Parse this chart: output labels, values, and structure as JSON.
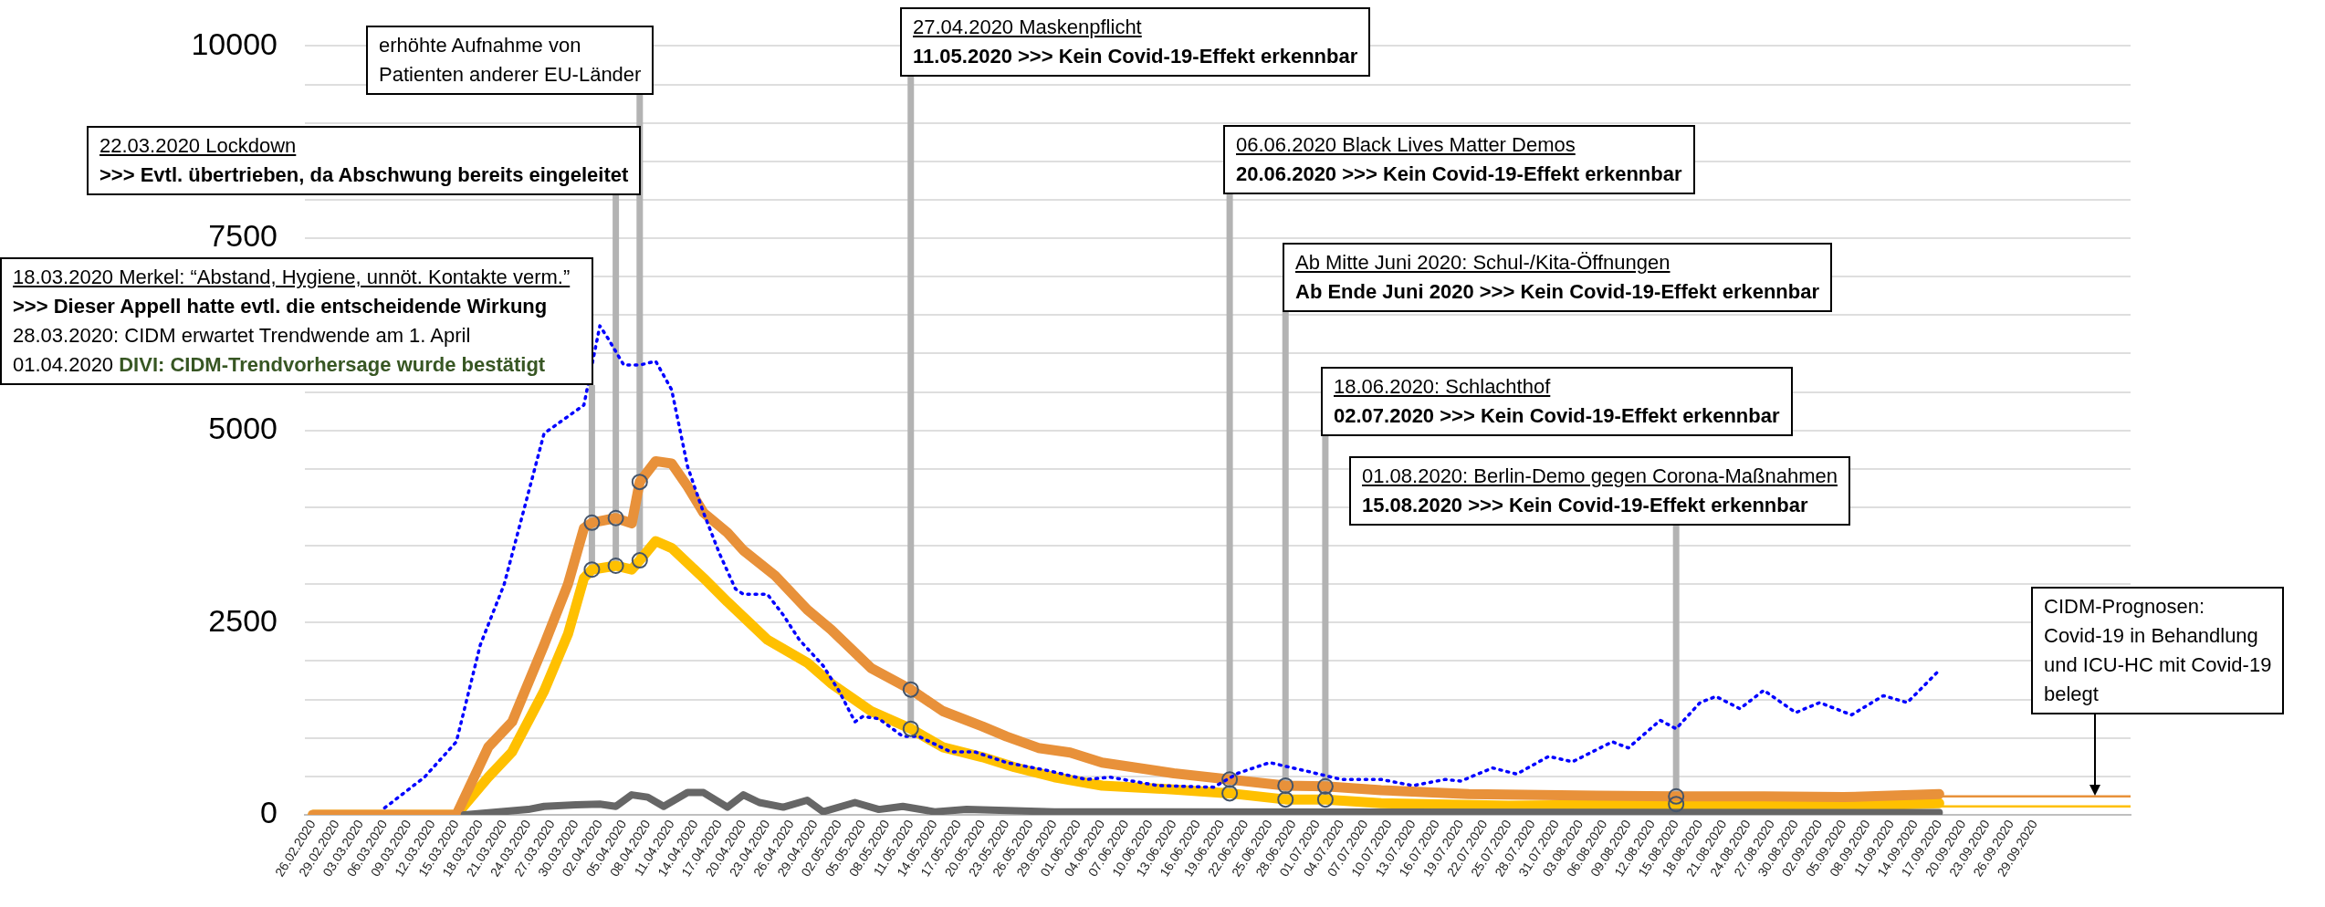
{
  "chart_data": {
    "type": "line",
    "xlim": [
      "2020-02-25",
      "2020-10-11"
    ],
    "xticks": [
      {
        "value": "2020-02-26",
        "label": "26.02.2020"
      },
      {
        "value": "2020-02-29",
        "label": "29.02.2020"
      },
      {
        "value": "2020-03-03",
        "label": "03.03.2020"
      },
      {
        "value": "2020-03-06",
        "label": "06.03.2020"
      },
      {
        "value": "2020-03-09",
        "label": "09.03.2020"
      },
      {
        "value": "2020-03-12",
        "label": "12.03.2020"
      },
      {
        "value": "2020-03-15",
        "label": "15.03.2020"
      },
      {
        "value": "2020-03-18",
        "label": "18.03.2020"
      },
      {
        "value": "2020-03-21",
        "label": "21.03.2020"
      },
      {
        "value": "2020-03-24",
        "label": "24.03.2020"
      },
      {
        "value": "2020-03-27",
        "label": "27.03.2020"
      },
      {
        "value": "2020-03-30",
        "label": "30.03.2020"
      },
      {
        "value": "2020-04-02",
        "label": "02.04.2020"
      },
      {
        "value": "2020-04-05",
        "label": "05.04.2020"
      },
      {
        "value": "2020-04-08",
        "label": "08.04.2020"
      },
      {
        "value": "2020-04-11",
        "label": "11.04.2020"
      },
      {
        "value": "2020-04-14",
        "label": "14.04.2020"
      },
      {
        "value": "2020-04-17",
        "label": "17.04.2020"
      },
      {
        "value": "2020-04-20",
        "label": "20.04.2020"
      },
      {
        "value": "2020-04-23",
        "label": "23.04.2020"
      },
      {
        "value": "2020-04-26",
        "label": "26.04.2020"
      },
      {
        "value": "2020-04-29",
        "label": "29.04.2020"
      },
      {
        "value": "2020-05-02",
        "label": "02.05.2020"
      },
      {
        "value": "2020-05-05",
        "label": "05.05.2020"
      },
      {
        "value": "2020-05-08",
        "label": "08.05.2020"
      },
      {
        "value": "2020-05-11",
        "label": "11.05.2020"
      },
      {
        "value": "2020-05-14",
        "label": "14.05.2020"
      },
      {
        "value": "2020-05-17",
        "label": "17.05.2020"
      },
      {
        "value": "2020-05-20",
        "label": "20.05.2020"
      },
      {
        "value": "2020-05-23",
        "label": "23.05.2020"
      },
      {
        "value": "2020-05-26",
        "label": "26.05.2020"
      },
      {
        "value": "2020-05-29",
        "label": "29.05.2020"
      },
      {
        "value": "2020-06-01",
        "label": "01.06.2020"
      },
      {
        "value": "2020-06-04",
        "label": "04.06.2020"
      },
      {
        "value": "2020-06-07",
        "label": "07.06.2020"
      },
      {
        "value": "2020-06-10",
        "label": "10.06.2020"
      },
      {
        "value": "2020-06-13",
        "label": "13.06.2020"
      },
      {
        "value": "2020-06-16",
        "label": "16.06.2020"
      },
      {
        "value": "2020-06-19",
        "label": "19.06.2020"
      },
      {
        "value": "2020-06-22",
        "label": "22.06.2020"
      },
      {
        "value": "2020-06-25",
        "label": "25.06.2020"
      },
      {
        "value": "2020-06-28",
        "label": "28.06.2020"
      },
      {
        "value": "2020-07-01",
        "label": "01.07.2020"
      },
      {
        "value": "2020-07-04",
        "label": "04.07.2020"
      },
      {
        "value": "2020-07-07",
        "label": "07.07.2020"
      },
      {
        "value": "2020-07-10",
        "label": "10.07.2020"
      },
      {
        "value": "2020-07-13",
        "label": "13.07.2020"
      },
      {
        "value": "2020-07-16",
        "label": "16.07.2020"
      },
      {
        "value": "2020-07-19",
        "label": "19.07.2020"
      },
      {
        "value": "2020-07-22",
        "label": "22.07.2020"
      },
      {
        "value": "2020-07-25",
        "label": "25.07.2020"
      },
      {
        "value": "2020-07-28",
        "label": "28.07.2020"
      },
      {
        "value": "2020-07-31",
        "label": "31.07.2020"
      },
      {
        "value": "2020-08-03",
        "label": "03.08.2020"
      },
      {
        "value": "2020-08-06",
        "label": "06.08.2020"
      },
      {
        "value": "2020-08-09",
        "label": "09.08.2020"
      },
      {
        "value": "2020-08-12",
        "label": "12.08.2020"
      },
      {
        "value": "2020-08-15",
        "label": "15.08.2020"
      },
      {
        "value": "2020-08-18",
        "label": "18.08.2020"
      },
      {
        "value": "2020-08-21",
        "label": "21.08.2020"
      },
      {
        "value": "2020-08-24",
        "label": "24.08.2020"
      },
      {
        "value": "2020-08-27",
        "label": "27.08.2020"
      },
      {
        "value": "2020-08-30",
        "label": "30.08.2020"
      },
      {
        "value": "2020-09-02",
        "label": "02.09.2020"
      },
      {
        "value": "2020-09-05",
        "label": "05.09.2020"
      },
      {
        "value": "2020-09-08",
        "label": "08.09.2020"
      },
      {
        "value": "2020-09-11",
        "label": "11.09.2020"
      },
      {
        "value": "2020-09-14",
        "label": "14.09.2020"
      },
      {
        "value": "2020-09-17",
        "label": "17.09.2020"
      },
      {
        "value": "2020-09-20",
        "label": "20.09.2020"
      },
      {
        "value": "2020-09-23",
        "label": "23.09.2020"
      },
      {
        "value": "2020-09-26",
        "label": "26.09.2020"
      },
      {
        "value": "2020-09-29",
        "label": "29.09.2020"
      }
    ],
    "ylim": [
      0,
      10000
    ],
    "yticks": [
      0,
      {
        "value": 500,
        "label": null
      },
      {
        "value": 1000,
        "label": null
      },
      {
        "value": 1500,
        "label": null
      },
      {
        "value": 2000,
        "label": null
      },
      2500,
      {
        "value": 3000,
        "label": null
      },
      {
        "value": 3500,
        "label": null
      },
      {
        "value": 4000,
        "label": null
      },
      {
        "value": 4500,
        "label": null
      },
      5000,
      {
        "value": 5500,
        "label": null
      },
      {
        "value": 6000,
        "label": null
      },
      {
        "value": 6500,
        "label": null
      },
      {
        "value": 7000,
        "label": null
      },
      7500,
      {
        "value": 8000,
        "label": null
      },
      {
        "value": 8500,
        "label": null
      },
      {
        "value": 9000,
        "label": null
      },
      {
        "value": 9500,
        "label": null
      },
      10000
    ],
    "grid": "y",
    "marker": "none",
    "series": [
      {
        "color": "#ffc000",
        "x": [
          "2020-09-17",
          "2020-10-11"
        ],
        "values": [
          110,
          110
        ]
      },
      {
        "color": "#e8913a",
        "x": [
          "2020-09-17",
          "2020-10-11"
        ],
        "values": [
          240,
          240
        ]
      },
      {
        "color": "#ffc000",
        "x": [
          "2020-02-26",
          "2020-03-15",
          "2020-03-19",
          "2020-03-22",
          "2020-03-26",
          "2020-03-29",
          "2020-03-31",
          "2020-04-01",
          "2020-04-04",
          "2020-04-06",
          "2020-04-07",
          "2020-04-09",
          "2020-04-11",
          "2020-04-15",
          "2020-04-18",
          "2020-04-23",
          "2020-04-28",
          "2020-05-01",
          "2020-05-06",
          "2020-05-11",
          "2020-05-15",
          "2020-05-20",
          "2020-05-24",
          "2020-05-29",
          "2020-06-04",
          "2020-06-13",
          "2020-06-20",
          "2020-06-27",
          "2020-07-02",
          "2020-07-09",
          "2020-07-25",
          "2020-08-15",
          "2020-09-05",
          "2020-09-17"
        ],
        "values": [
          0,
          0,
          490,
          820,
          1610,
          2350,
          3080,
          3190,
          3240,
          3190,
          3310,
          3560,
          3470,
          3080,
          2770,
          2280,
          1980,
          1710,
          1350,
          1120,
          880,
          750,
          620,
          490,
          380,
          330,
          280,
          200,
          200,
          150,
          120,
          140,
          110,
          150
        ]
      },
      {
        "color": "#e8913a",
        "x": [
          "2020-02-26",
          "2020-03-15",
          "2020-03-19",
          "2020-03-22",
          "2020-03-26",
          "2020-03-29",
          "2020-03-31",
          "2020-04-01",
          "2020-04-04",
          "2020-04-06",
          "2020-04-07",
          "2020-04-09",
          "2020-04-11",
          "2020-04-13",
          "2020-04-15",
          "2020-04-18",
          "2020-04-20",
          "2020-04-24",
          "2020-04-28",
          "2020-05-01",
          "2020-05-06",
          "2020-05-11",
          "2020-05-15",
          "2020-05-20",
          "2020-05-23",
          "2020-05-27",
          "2020-05-31",
          "2020-06-04",
          "2020-06-13",
          "2020-06-20",
          "2020-06-27",
          "2020-07-02",
          "2020-07-09",
          "2020-07-20",
          "2020-08-05",
          "2020-08-15",
          "2020-08-26",
          "2020-09-05",
          "2020-09-17"
        ],
        "values": [
          0,
          0,
          880,
          1210,
          2210,
          3000,
          3730,
          3800,
          3860,
          3790,
          4330,
          4600,
          4570,
          4270,
          3930,
          3670,
          3440,
          3110,
          2670,
          2410,
          1910,
          1630,
          1350,
          1150,
          1020,
          870,
          810,
          680,
          540,
          460,
          380,
          370,
          320,
          270,
          250,
          240,
          240,
          230,
          270
        ]
      },
      {
        "color": "#666666",
        "x": [
          "2020-03-16",
          "2020-03-24",
          "2020-03-26",
          "2020-03-30",
          "2020-04-02",
          "2020-04-04",
          "2020-04-06",
          "2020-04-08",
          "2020-04-10",
          "2020-04-13",
          "2020-04-15",
          "2020-04-18",
          "2020-04-20",
          "2020-04-22",
          "2020-04-25",
          "2020-04-28",
          "2020-04-30",
          "2020-05-04",
          "2020-05-07",
          "2020-05-10",
          "2020-05-14",
          "2020-05-18",
          "2020-05-29",
          "2020-09-17"
        ],
        "values": [
          0,
          70,
          110,
          130,
          140,
          110,
          260,
          230,
          110,
          290,
          290,
          100,
          260,
          160,
          100,
          190,
          40,
          160,
          70,
          110,
          40,
          70,
          40,
          30
        ]
      },
      {
        "color": "#0000ff",
        "line_style": "dotted",
        "x": [
          "2020-03-06",
          "2020-03-11",
          "2020-03-15",
          "2020-03-18",
          "2020-03-21",
          "2020-03-26",
          "2020-03-31",
          "2020-04-02",
          "2020-04-03",
          "2020-04-05",
          "2020-04-07",
          "2020-04-09",
          "2020-04-11",
          "2020-04-13",
          "2020-04-15",
          "2020-04-17",
          "2020-04-19",
          "2020-04-20",
          "2020-04-23",
          "2020-04-25",
          "2020-04-27",
          "2020-04-30",
          "2020-05-02",
          "2020-05-04",
          "2020-05-05",
          "2020-05-07",
          "2020-05-10",
          "2020-05-12",
          "2020-05-16",
          "2020-05-19",
          "2020-05-23",
          "2020-05-28",
          "2020-06-02",
          "2020-06-05",
          "2020-06-11",
          "2020-06-18",
          "2020-06-21",
          "2020-06-25",
          "2020-06-30",
          "2020-07-04",
          "2020-07-09",
          "2020-07-13",
          "2020-07-17",
          "2020-07-19",
          "2020-07-23",
          "2020-07-26",
          "2020-07-30",
          "2020-08-02",
          "2020-08-07",
          "2020-08-09",
          "2020-08-13",
          "2020-08-15",
          "2020-08-18",
          "2020-08-20",
          "2020-08-23",
          "2020-08-26",
          "2020-08-30",
          "2020-09-02",
          "2020-09-06",
          "2020-09-10",
          "2020-09-13",
          "2020-09-17"
        ],
        "values": [
          90,
          490,
          950,
          2210,
          3000,
          4960,
          5330,
          6360,
          6200,
          5850,
          5850,
          5900,
          5530,
          4530,
          3930,
          3400,
          2940,
          2870,
          2870,
          2600,
          2280,
          1940,
          1610,
          1210,
          1280,
          1250,
          1020,
          1020,
          820,
          820,
          680,
          580,
          460,
          490,
          380,
          360,
          540,
          680,
          560,
          460,
          460,
          380,
          460,
          440,
          610,
          530,
          760,
          690,
          950,
          870,
          1230,
          1120,
          1460,
          1540,
          1380,
          1620,
          1330,
          1460,
          1300,
          1550,
          1460,
          1880
        ]
      }
    ],
    "annotations": [
      {
        "text": "18.03.2020 Merkel: “Abstand, Hygiene, unnöt. Kontakte verm.”\n>>> Dieser Appell hatte evtl. die entscheidende Wirkung\n28.03.2020: CIDM erwartet Trendwende am 1. April\n01.04.2020 DIVI: CIDM-Trendvorhersage wurde bestätigt",
        "x": "2020-04-01",
        "y": 3190
      },
      {
        "text": "22.03.2020 Lockdown\n>>> Evtl. übertrieben, da Abschwung bereits eingeleitet",
        "x": "2020-04-04",
        "y": 3240
      },
      {
        "text": "erhöhte Aufnahme von\nPatienten anderer EU-Länder",
        "x": "2020-04-07",
        "y": 3310
      },
      {
        "text": "27.04.2020 Maskenpflicht\n11.05.2020 >>> Kein Covid-19-Effekt erkennbar",
        "x": "2020-05-11",
        "y": 1120
      },
      {
        "text": "06.06.2020 Black Lives Matter Demos\n20.06.2020 >>> Kein Covid-19-Effekt erkennbar",
        "x": "2020-06-20",
        "y": 280
      },
      {
        "text": "Ab Mitte Juni 2020: Schul-/Kita-Öffnungen\nAb Ende Juni 2020 >>> Kein Covid-19-Effekt erkennbar",
        "x": "2020-06-27",
        "y": 200
      },
      {
        "text": "18.06.2020: Schlachthof\n02.07.2020 >>> Kein Covid-19-Effekt erkennbar",
        "x": "2020-07-02",
        "y": 200
      },
      {
        "text": "01.08.2020: Berlin-Demo gegen Corona-Maßnahmen\n15.08.2020 >>> Kein Covid-19-Effekt erkennbar",
        "x": "2020-08-15",
        "y": 140
      },
      "CIDM-Prognosen:\nCovid-19 in Behandlung\nund ICU-HC mit Covid-19\nbelegt"
    ]
  }
}
